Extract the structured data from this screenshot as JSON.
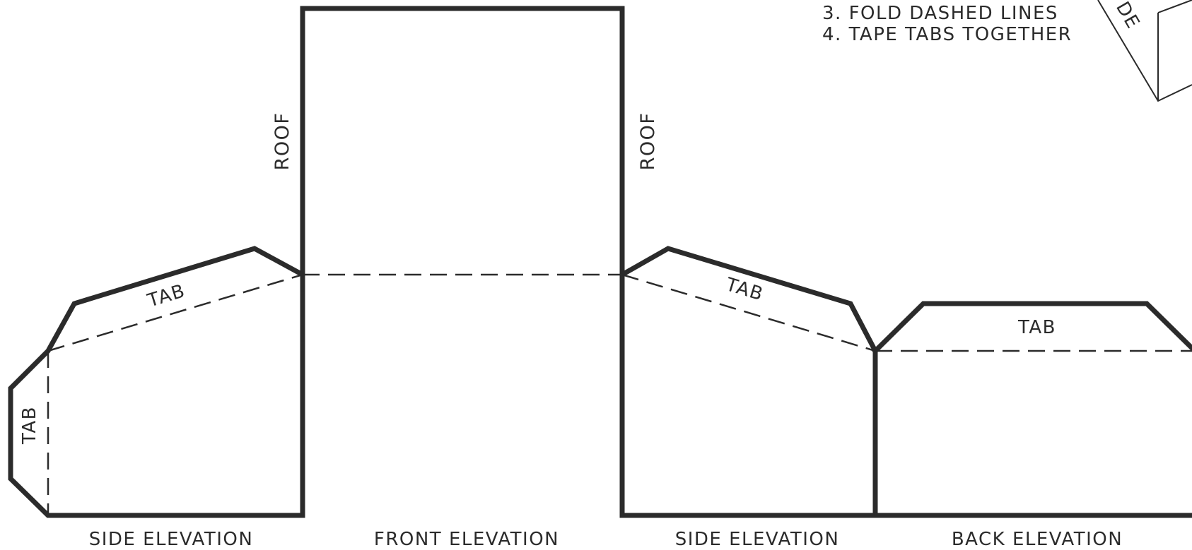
{
  "instructions": {
    "step3": "3. FOLD DASHED LINES",
    "step4": "4. TAPE TABS TOGETHER"
  },
  "labels": {
    "roof_left": "ROOF",
    "roof_right": "ROOF",
    "tab_left_side": "TAB",
    "tab_left_roof": "TAB",
    "tab_right_roof": "TAB",
    "tab_back": "TAB",
    "corner_partial": "DE"
  },
  "elevations": {
    "side_left": "SIDE ELEVATION",
    "front": "FRONT ELEVATION",
    "side_right": "SIDE ELEVATION",
    "back": "BACK ELEVATION"
  },
  "colors": {
    "line": "#2b2b2b",
    "background": "#ffffff"
  }
}
